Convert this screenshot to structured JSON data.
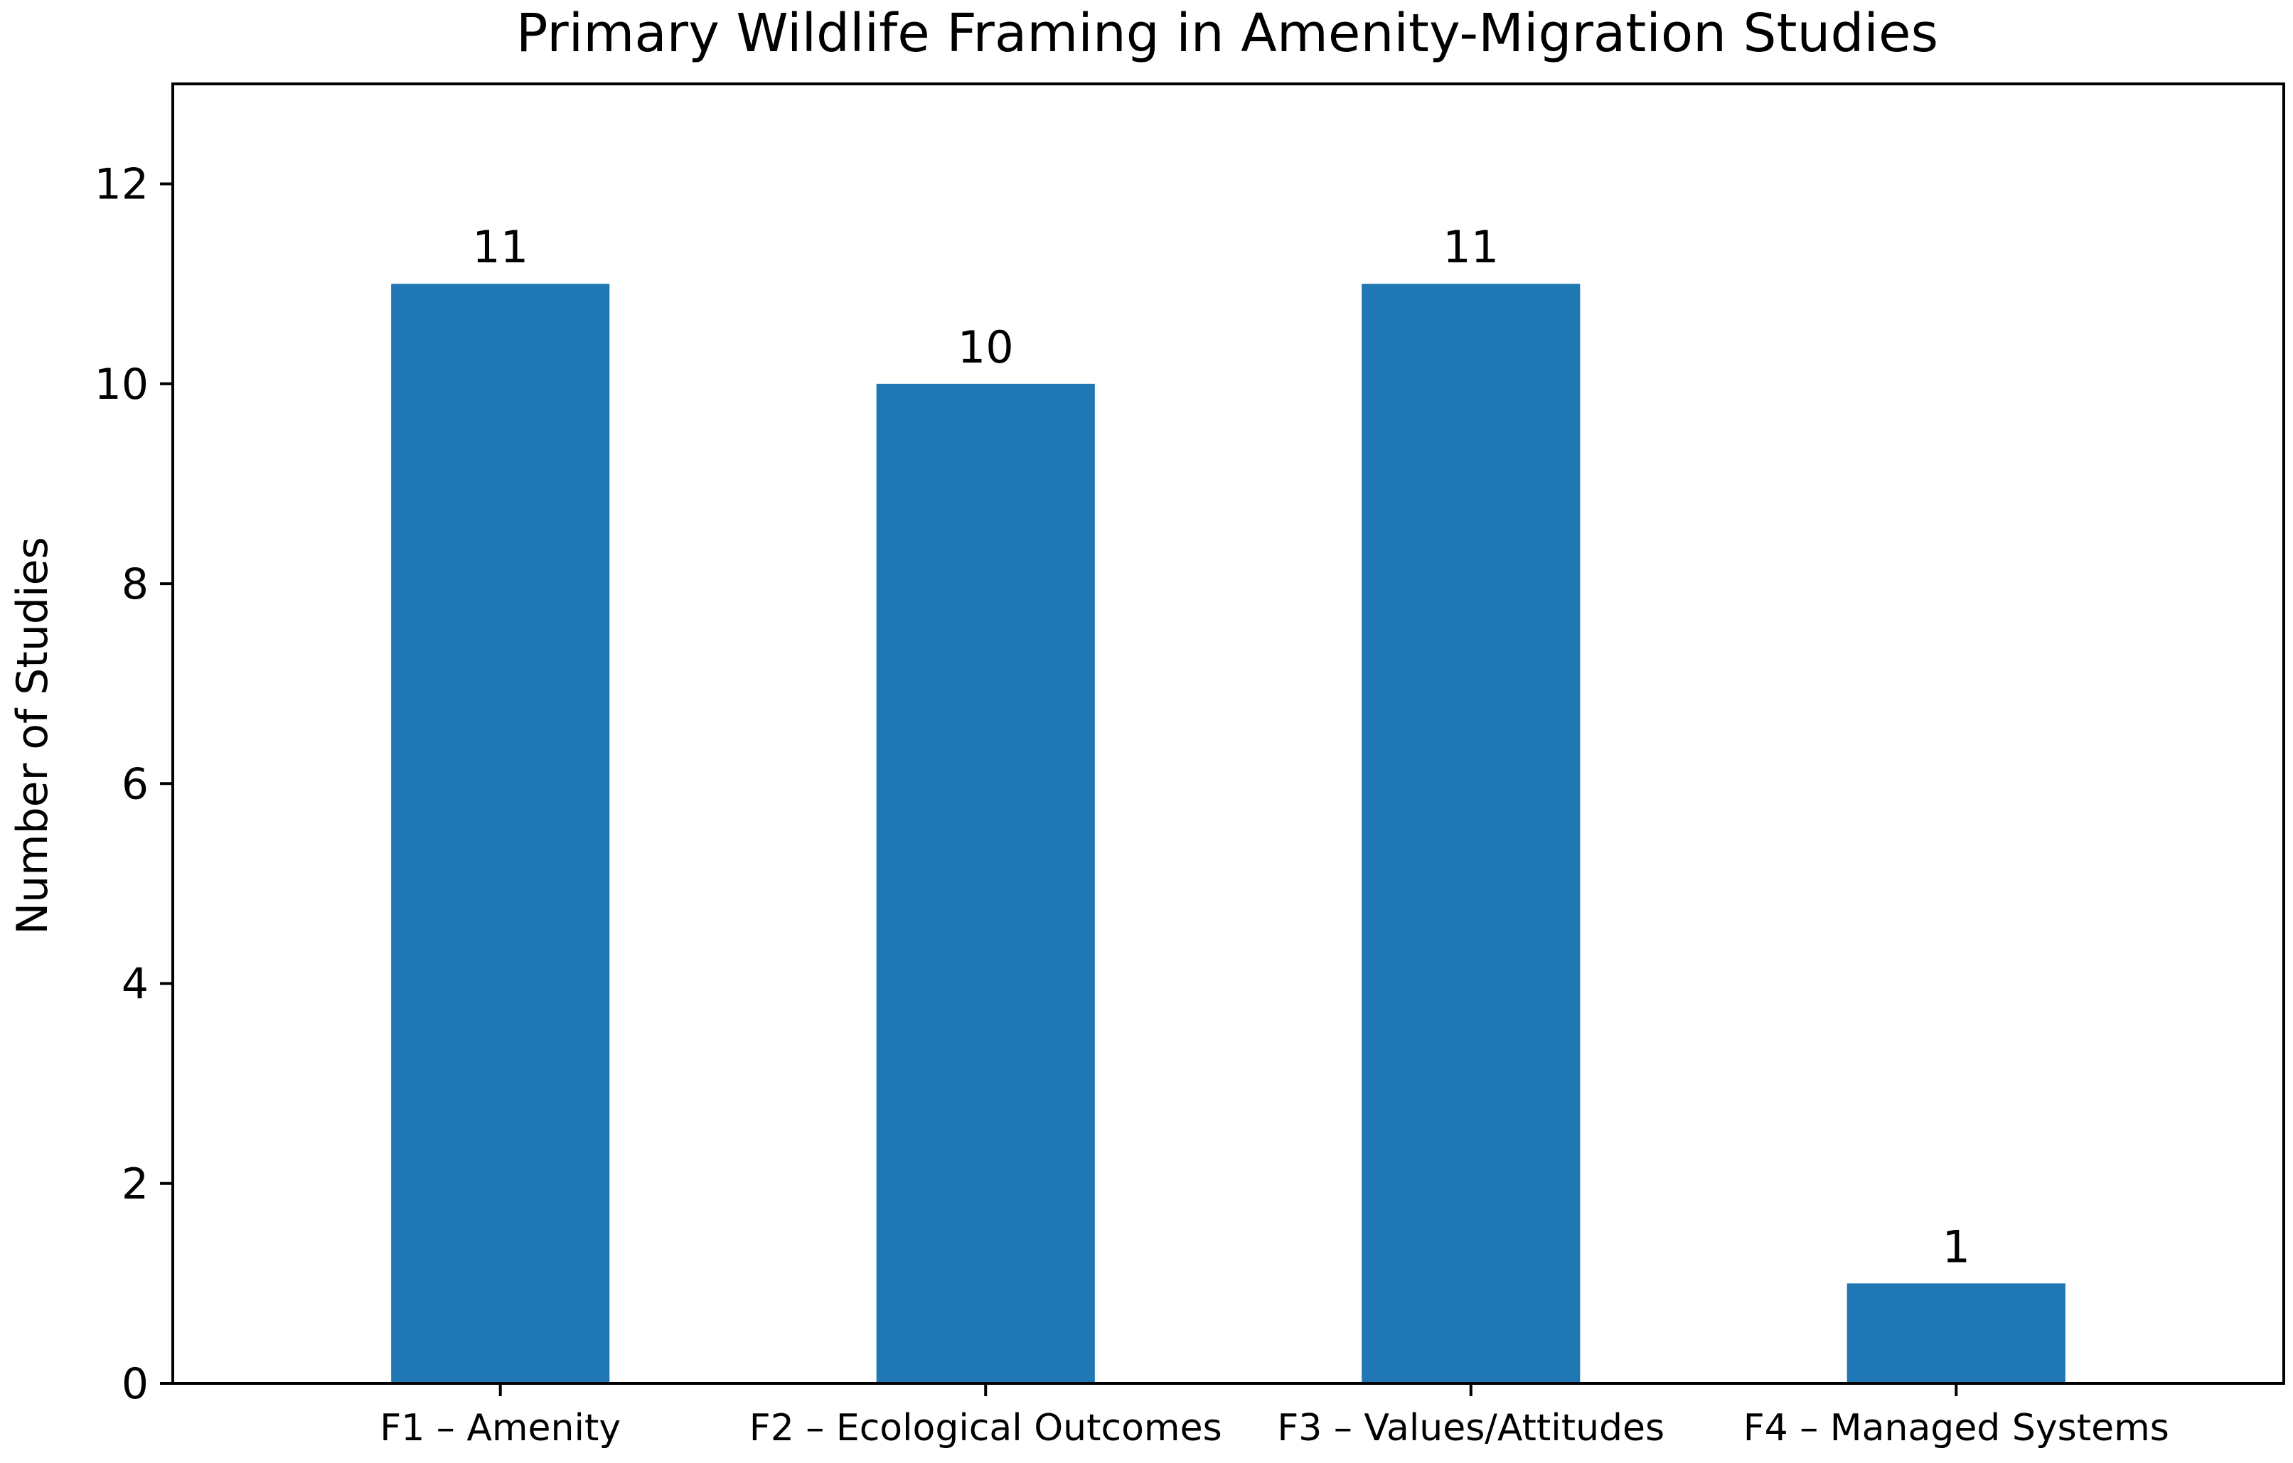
{
  "chart_data": {
    "type": "bar",
    "title": "Primary Wildlife Framing in Amenity-Migration Studies",
    "xlabel": "",
    "ylabel": "Number of Studies",
    "categories": [
      "F1 – Amenity",
      "F2 – Ecological Outcomes",
      "F3 – Values/Attitudes",
      "F4 – Managed Systems"
    ],
    "values": [
      11,
      10,
      11,
      1
    ],
    "data_labels": [
      "11",
      "10",
      "11",
      "1"
    ],
    "ylim": [
      0,
      13
    ],
    "yticks": [
      0,
      2,
      4,
      6,
      8,
      10,
      12
    ],
    "grid": false,
    "bar_color": "#1f77b4"
  }
}
